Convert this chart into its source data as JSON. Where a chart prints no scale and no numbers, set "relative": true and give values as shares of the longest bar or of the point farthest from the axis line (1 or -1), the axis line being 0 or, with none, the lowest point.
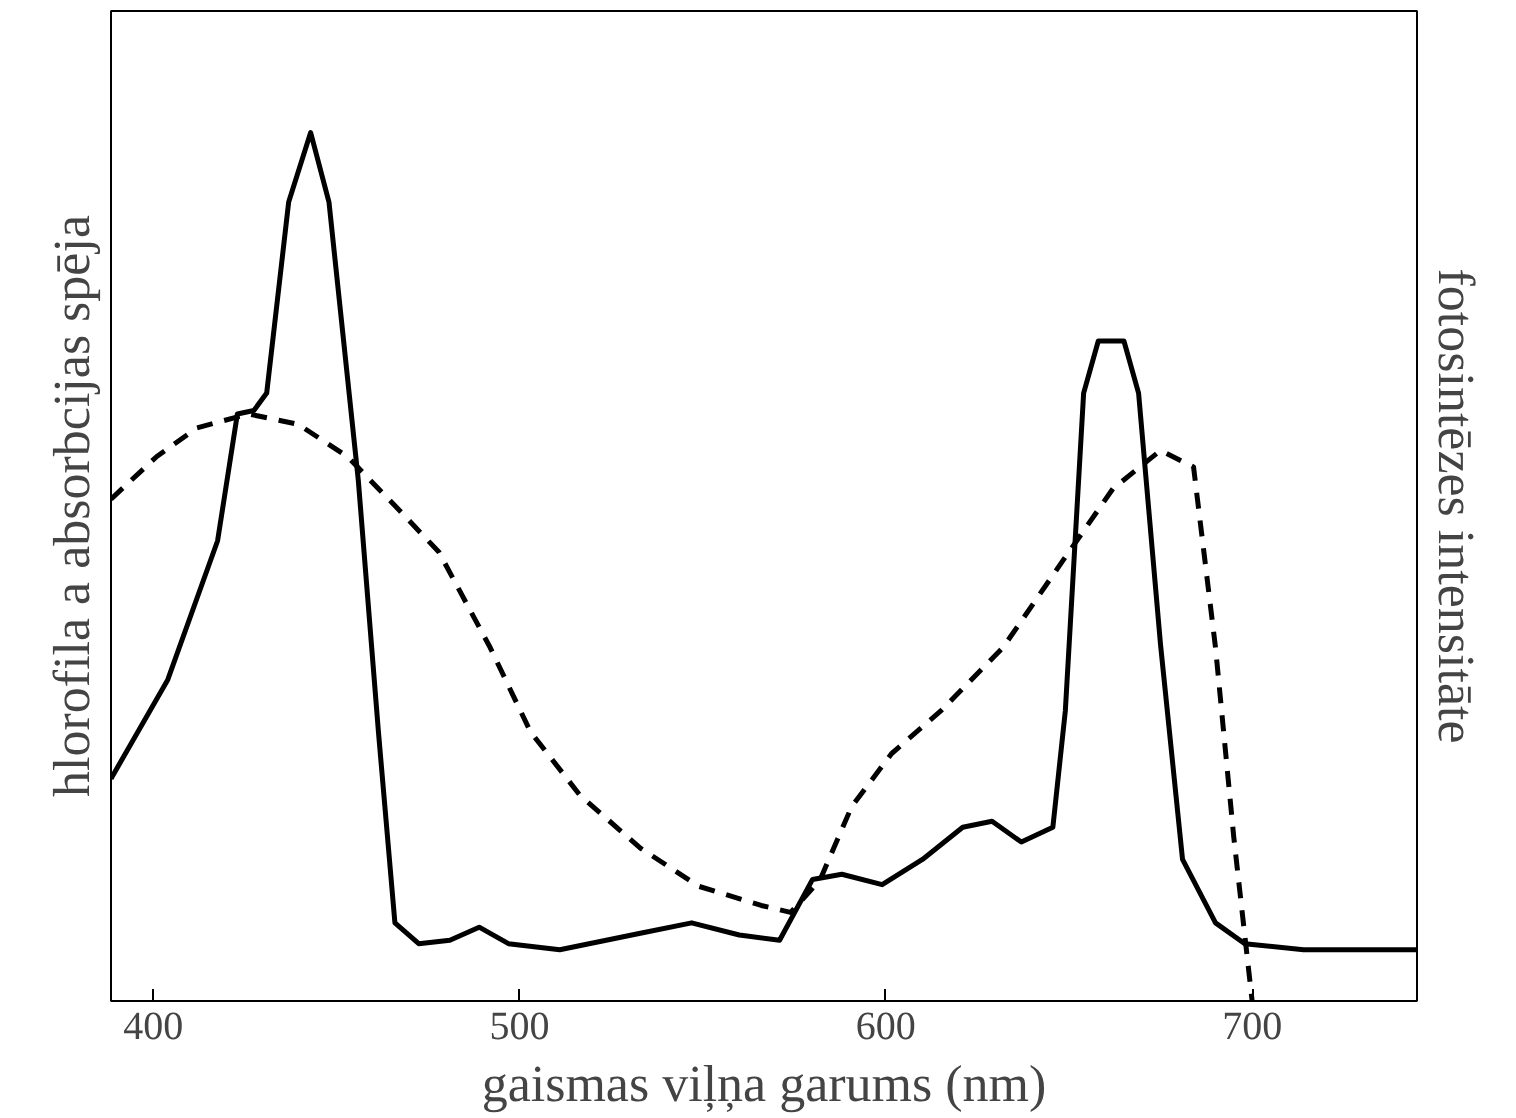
{
  "chart_data": {
    "type": "line",
    "relative": true,
    "xlabel": "gaismas viļņa garums (nm)",
    "ylabel": "hlorofila a absorbcijas spēja",
    "y2label": "fotosintēzes intensitāte",
    "xlim": [
      388.5,
      745
    ],
    "xticks": [
      400,
      500,
      600,
      700
    ],
    "grid": false,
    "series": [
      {
        "color": "#000000",
        "line_style": "solid",
        "x": [
          388.5,
          404,
          417.6,
          423,
          427.5,
          431,
          437,
          443,
          448,
          456,
          461.5,
          466,
          472.5,
          481,
          489,
          497,
          511,
          533,
          547,
          560,
          571,
          580,
          588,
          599,
          610,
          621,
          629,
          637,
          645.6,
          649,
          654,
          658,
          665,
          669,
          675,
          681,
          690,
          698,
          714,
          745
        ],
        "values": [
          0.256,
          0.37,
          0.53,
          0.676,
          0.68,
          0.7,
          0.92,
          1.0,
          0.92,
          0.6,
          0.31,
          0.09,
          0.066,
          0.07,
          0.085,
          0.066,
          0.059,
          0.078,
          0.09,
          0.076,
          0.07,
          0.14,
          0.146,
          0.134,
          0.163,
          0.2,
          0.207,
          0.183,
          0.2,
          0.334,
          0.7,
          0.76,
          0.76,
          0.7,
          0.41,
          0.163,
          0.09,
          0.066,
          0.059,
          0.059
        ]
      },
      {
        "color": "#000000",
        "line_style": "dashed",
        "x": [
          388.5,
          401,
          412,
          426,
          439.6,
          453,
          467,
          478,
          492,
          503,
          516.5,
          533,
          549,
          566,
          574,
          582,
          590.7,
          601.6,
          615,
          632,
          648,
          662,
          675,
          684,
          690,
          695,
          700
        ],
        "values": [
          0.578,
          0.627,
          0.66,
          0.676,
          0.664,
          0.627,
          0.566,
          0.517,
          0.407,
          0.31,
          0.237,
          0.176,
          0.132,
          0.11,
          0.102,
          0.139,
          0.224,
          0.285,
          0.334,
          0.407,
          0.505,
          0.59,
          0.634,
          0.615,
          0.407,
          0.188,
          0.0
        ]
      }
    ]
  }
}
